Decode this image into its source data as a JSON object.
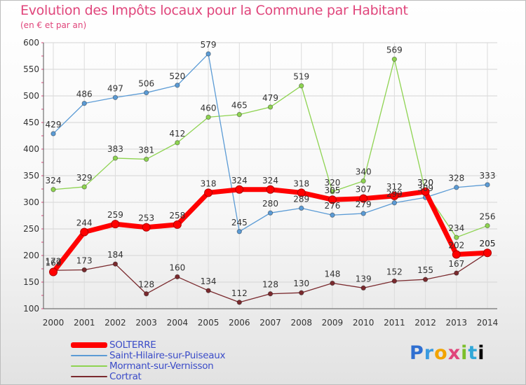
{
  "chart_data": {
    "type": "line",
    "title": "Evolution des Impôts locaux pour la Commune par Habitant",
    "subtitle": "(en € et par an)",
    "x": [
      "2000",
      "2001",
      "2002",
      "2003",
      "2004",
      "2005",
      "2006",
      "2007",
      "2008",
      "2009",
      "2010",
      "2011",
      "2012",
      "2013",
      "2014"
    ],
    "ylim": [
      100,
      600
    ],
    "yticks": [
      100,
      150,
      200,
      250,
      300,
      350,
      400,
      450,
      500,
      550,
      600
    ],
    "grid": true,
    "legend_position": "bottom-left",
    "series": [
      {
        "name": "SOLTERRE",
        "color": "#ff0000",
        "values": [
          169,
          244,
          259,
          253,
          258,
          318,
          324,
          324,
          318,
          305,
          307,
          312,
          320,
          202,
          205
        ]
      },
      {
        "name": "Saint-Hilaire-sur-Puiseaux",
        "color": "#5b9bd5",
        "values": [
          429,
          486,
          497,
          506,
          520,
          579,
          245,
          280,
          289,
          276,
          279,
          299,
          309,
          328,
          333
        ]
      },
      {
        "name": "Mormant-sur-Vernisson",
        "color": "#8ed351",
        "values": [
          324,
          329,
          383,
          381,
          412,
          460,
          465,
          479,
          519,
          320,
          340,
          569,
          320,
          234,
          256
        ]
      },
      {
        "name": "Cortrat",
        "color": "#7a2a2e",
        "values": [
          172,
          173,
          184,
          128,
          160,
          134,
          112,
          128,
          130,
          148,
          139,
          152,
          155,
          167,
          205
        ]
      }
    ]
  },
  "logo": {
    "letters": [
      "P",
      "r",
      "o",
      "x",
      "i",
      "t",
      "i"
    ]
  }
}
